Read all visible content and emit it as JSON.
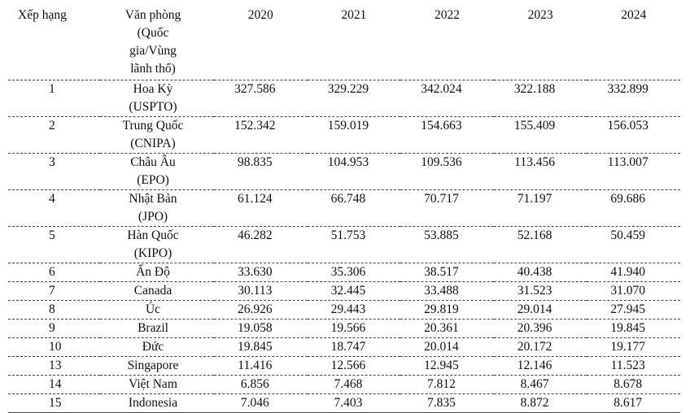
{
  "table": {
    "headers": {
      "rank": "Xếp hạng",
      "office_lines": [
        "Văn phòng",
        "(Quốc",
        "gia/Vùng",
        "lãnh thổ)"
      ],
      "years": [
        "2020",
        "2021",
        "2022",
        "2023",
        "2024"
      ]
    },
    "rows": [
      {
        "rank": "1",
        "office": [
          "Hoa Kỳ",
          "(USPTO)"
        ],
        "values": [
          "327.586",
          "329.229",
          "342.024",
          "322.188",
          "332.899"
        ]
      },
      {
        "rank": "2",
        "office": [
          "Trung Quốc",
          "(CNIPA)"
        ],
        "values": [
          "152.342",
          "159.019",
          "154.663",
          "155.409",
          "156.053"
        ]
      },
      {
        "rank": "3",
        "office": [
          "Châu Âu",
          "(EPO)"
        ],
        "values": [
          "98.835",
          "104.953",
          "109.536",
          "113.456",
          "113.007"
        ]
      },
      {
        "rank": "4",
        "office": [
          "Nhật Bản",
          "(JPO)"
        ],
        "values": [
          "61.124",
          "66.748",
          "70.717",
          "71.197",
          "69.686"
        ]
      },
      {
        "rank": "5",
        "office": [
          "Hàn Quốc",
          "(KIPO)"
        ],
        "values": [
          "46.282",
          "51.753",
          "53.885",
          "52.168",
          "50.459"
        ]
      },
      {
        "rank": "6",
        "office": [
          "Ấn Độ"
        ],
        "values": [
          "33.630",
          "35.306",
          "38.517",
          "40.438",
          "41.940"
        ]
      },
      {
        "rank": "7",
        "office": [
          "Canada"
        ],
        "values": [
          "30.113",
          "32.445",
          "33.488",
          "31.523",
          "31.070"
        ]
      },
      {
        "rank": "8",
        "office": [
          "Úc"
        ],
        "values": [
          "26.926",
          "29.443",
          "29.819",
          "29.014",
          "27.945"
        ]
      },
      {
        "rank": "9",
        "office": [
          "Brazil"
        ],
        "values": [
          "19.058",
          "19.566",
          "20.361",
          "20.396",
          "19.845"
        ]
      },
      {
        "rank": "10",
        "office": [
          "Đức"
        ],
        "values": [
          "19.845",
          "18.747",
          "20.014",
          "20.172",
          "19.177"
        ]
      },
      {
        "rank": "13",
        "office": [
          "Singapore"
        ],
        "values": [
          "11.416",
          "12.566",
          "12.945",
          "12.146",
          "11.523"
        ]
      },
      {
        "rank": "14",
        "office": [
          "Việt Nam"
        ],
        "values": [
          "6.856",
          "7.468",
          "7.812",
          "8.467",
          "8.678"
        ]
      },
      {
        "rank": "15",
        "office": [
          "Indonesia"
        ],
        "values": [
          "7.046",
          "7.403",
          "7.835",
          "8.872",
          "8.617"
        ]
      }
    ]
  }
}
